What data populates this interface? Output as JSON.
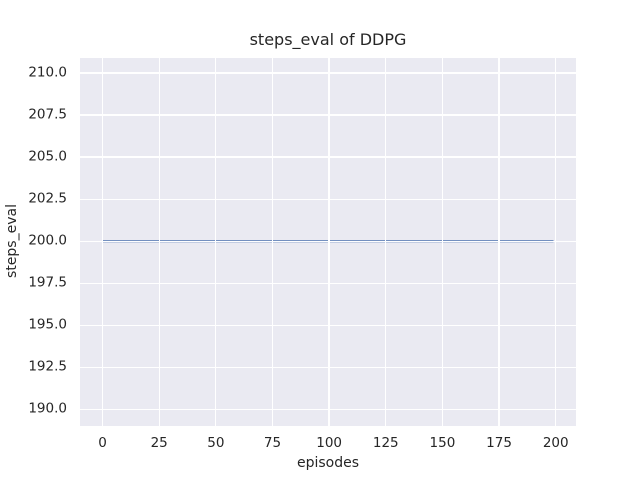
{
  "chart_data": {
    "type": "line",
    "title": "steps_eval of DDPG",
    "grid": true,
    "x_axis": {
      "label": "episodes",
      "lim": [
        -9.95,
        208.95
      ],
      "ticks": [
        0,
        25,
        50,
        75,
        100,
        125,
        150,
        175,
        200
      ],
      "tick_labels": [
        "0",
        "25",
        "50",
        "75",
        "100",
        "125",
        "150",
        "175",
        "200"
      ]
    },
    "y_axis": {
      "label": "steps_eval",
      "lim": [
        189.0,
        210.9
      ],
      "ticks": [
        190.0,
        192.5,
        195.0,
        197.5,
        200.0,
        202.5,
        205.0,
        207.5,
        210.0
      ],
      "tick_labels": [
        "190.0",
        "192.5",
        "195.0",
        "197.5",
        "200.0",
        "202.5",
        "205.0",
        "207.5",
        "210.0"
      ]
    },
    "series": [
      {
        "name": "DDPG",
        "color": "#4c72b0",
        "description": "constant steps_eval of 200 for every episode",
        "points": [
          {
            "x": 0,
            "y": 200
          },
          {
            "x": 199,
            "y": 200
          }
        ]
      }
    ],
    "colors": {
      "figure_background": "#ffffff",
      "axes_background": "#eaeaf2",
      "gridline": "#ffffff",
      "text": "#262626"
    }
  }
}
